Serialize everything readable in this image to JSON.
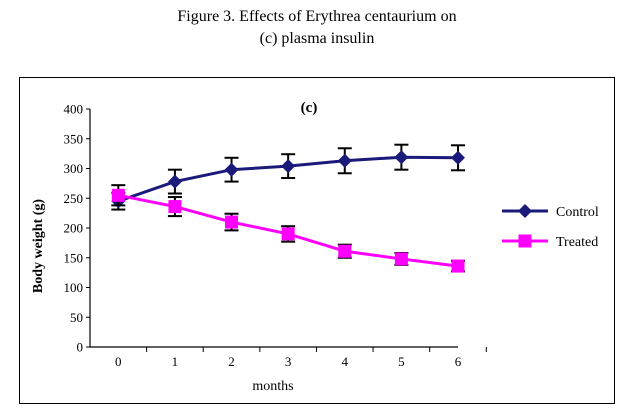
{
  "figure": {
    "title_line1": "Figure 3. Effects of Erythrea centaurium on",
    "title_line2": "(c) plasma insulin"
  },
  "chart_data": {
    "type": "line",
    "panel_label": "(c)",
    "xlabel": "months",
    "ylabel": "Body weight (g)",
    "x": [
      0,
      1,
      2,
      3,
      4,
      5,
      6
    ],
    "ylim": [
      0,
      400
    ],
    "yticks": [
      0,
      50,
      100,
      150,
      200,
      250,
      300,
      350,
      400
    ],
    "grid": false,
    "legend_position": "right",
    "series": [
      {
        "name": "Control",
        "color": "#1a1a7a",
        "marker": "diamond",
        "values": [
          245,
          278,
          298,
          304,
          313,
          319,
          318
        ],
        "errors": [
          14,
          20,
          20,
          20,
          21,
          21,
          21
        ]
      },
      {
        "name": "Treated",
        "color": "#ff00ff",
        "marker": "square",
        "values": [
          255,
          236,
          210,
          190,
          161,
          148,
          136
        ],
        "errors": [
          17,
          16,
          14,
          13,
          11,
          10,
          9
        ]
      }
    ]
  }
}
